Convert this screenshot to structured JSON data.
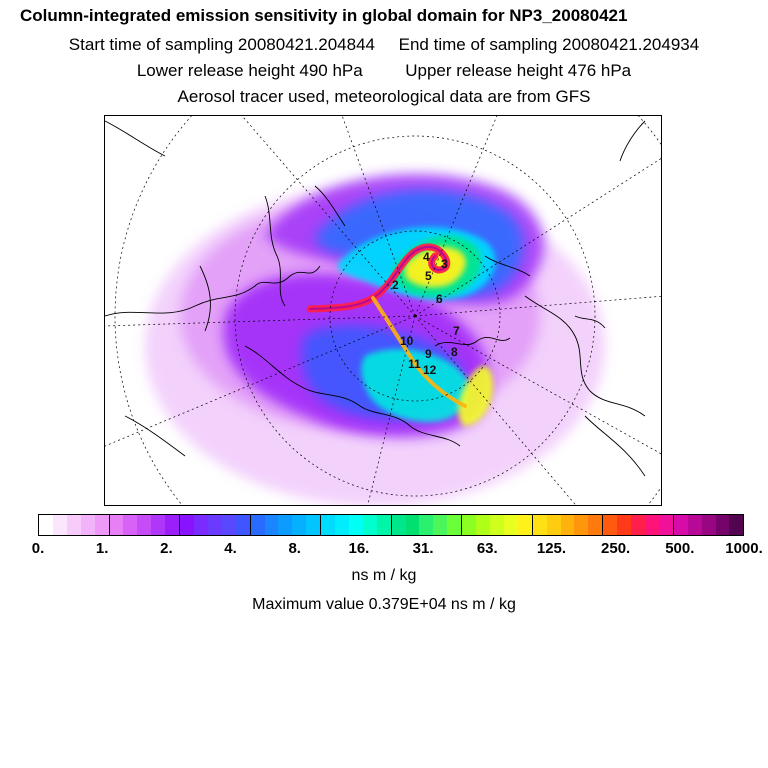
{
  "header": {
    "title": "Column-integrated emission sensitivity in global domain for NP3_20080421",
    "start_label": "Start time of sampling 20080421.204844",
    "end_label": "End time of sampling 20080421.204934",
    "lower_label": "Lower release height  490 hPa",
    "upper_label": "Upper release height  476 hPa",
    "note": "Aerosol tracer used, meteorological data are from GFS"
  },
  "map": {
    "projection_name": "polar-stereographic",
    "point_labels": [
      "2",
      "3",
      "4",
      "5",
      "6",
      "7",
      "8",
      "9",
      "10",
      "11",
      "12"
    ]
  },
  "colorbar": {
    "colors": [
      "#ffffff",
      "#fbe6fd",
      "#f7ccfb",
      "#f2b3fa",
      "#ee99f8",
      "#e97ff6",
      "#d861f7",
      "#c64cf8",
      "#b036f9",
      "#9a1ff9",
      "#8a13ff",
      "#7a2bff",
      "#6a3bff",
      "#5a48ff",
      "#3e55ff",
      "#2a6bff",
      "#1a85ff",
      "#0c9cff",
      "#05b0ff",
      "#00c5ff",
      "#00dcff",
      "#00ecff",
      "#00fff5",
      "#00ffcc",
      "#00f5a8",
      "#00e68a",
      "#00e070",
      "#2af070",
      "#4cf55a",
      "#6bff3a",
      "#8bff22",
      "#b0ff18",
      "#cfff1c",
      "#e8ff20",
      "#fff21a",
      "#ffe014",
      "#ffcc0f",
      "#ffb20c",
      "#ff960b",
      "#ff7a0c",
      "#ff5a10",
      "#ff3a18",
      "#ff1f4a",
      "#ff127a",
      "#f0109a",
      "#d60ba8",
      "#b80898",
      "#980682",
      "#74046a",
      "#520450"
    ],
    "tick_labels": [
      "0.",
      "1.",
      "2.",
      "4.",
      "8.",
      "16.",
      "31.",
      "63.",
      "125.",
      "250.",
      "500.",
      "1000."
    ],
    "unit": "ns m / kg"
  },
  "footer": {
    "max_label": "Maximum value  0.379E+04 ns m / kg"
  }
}
